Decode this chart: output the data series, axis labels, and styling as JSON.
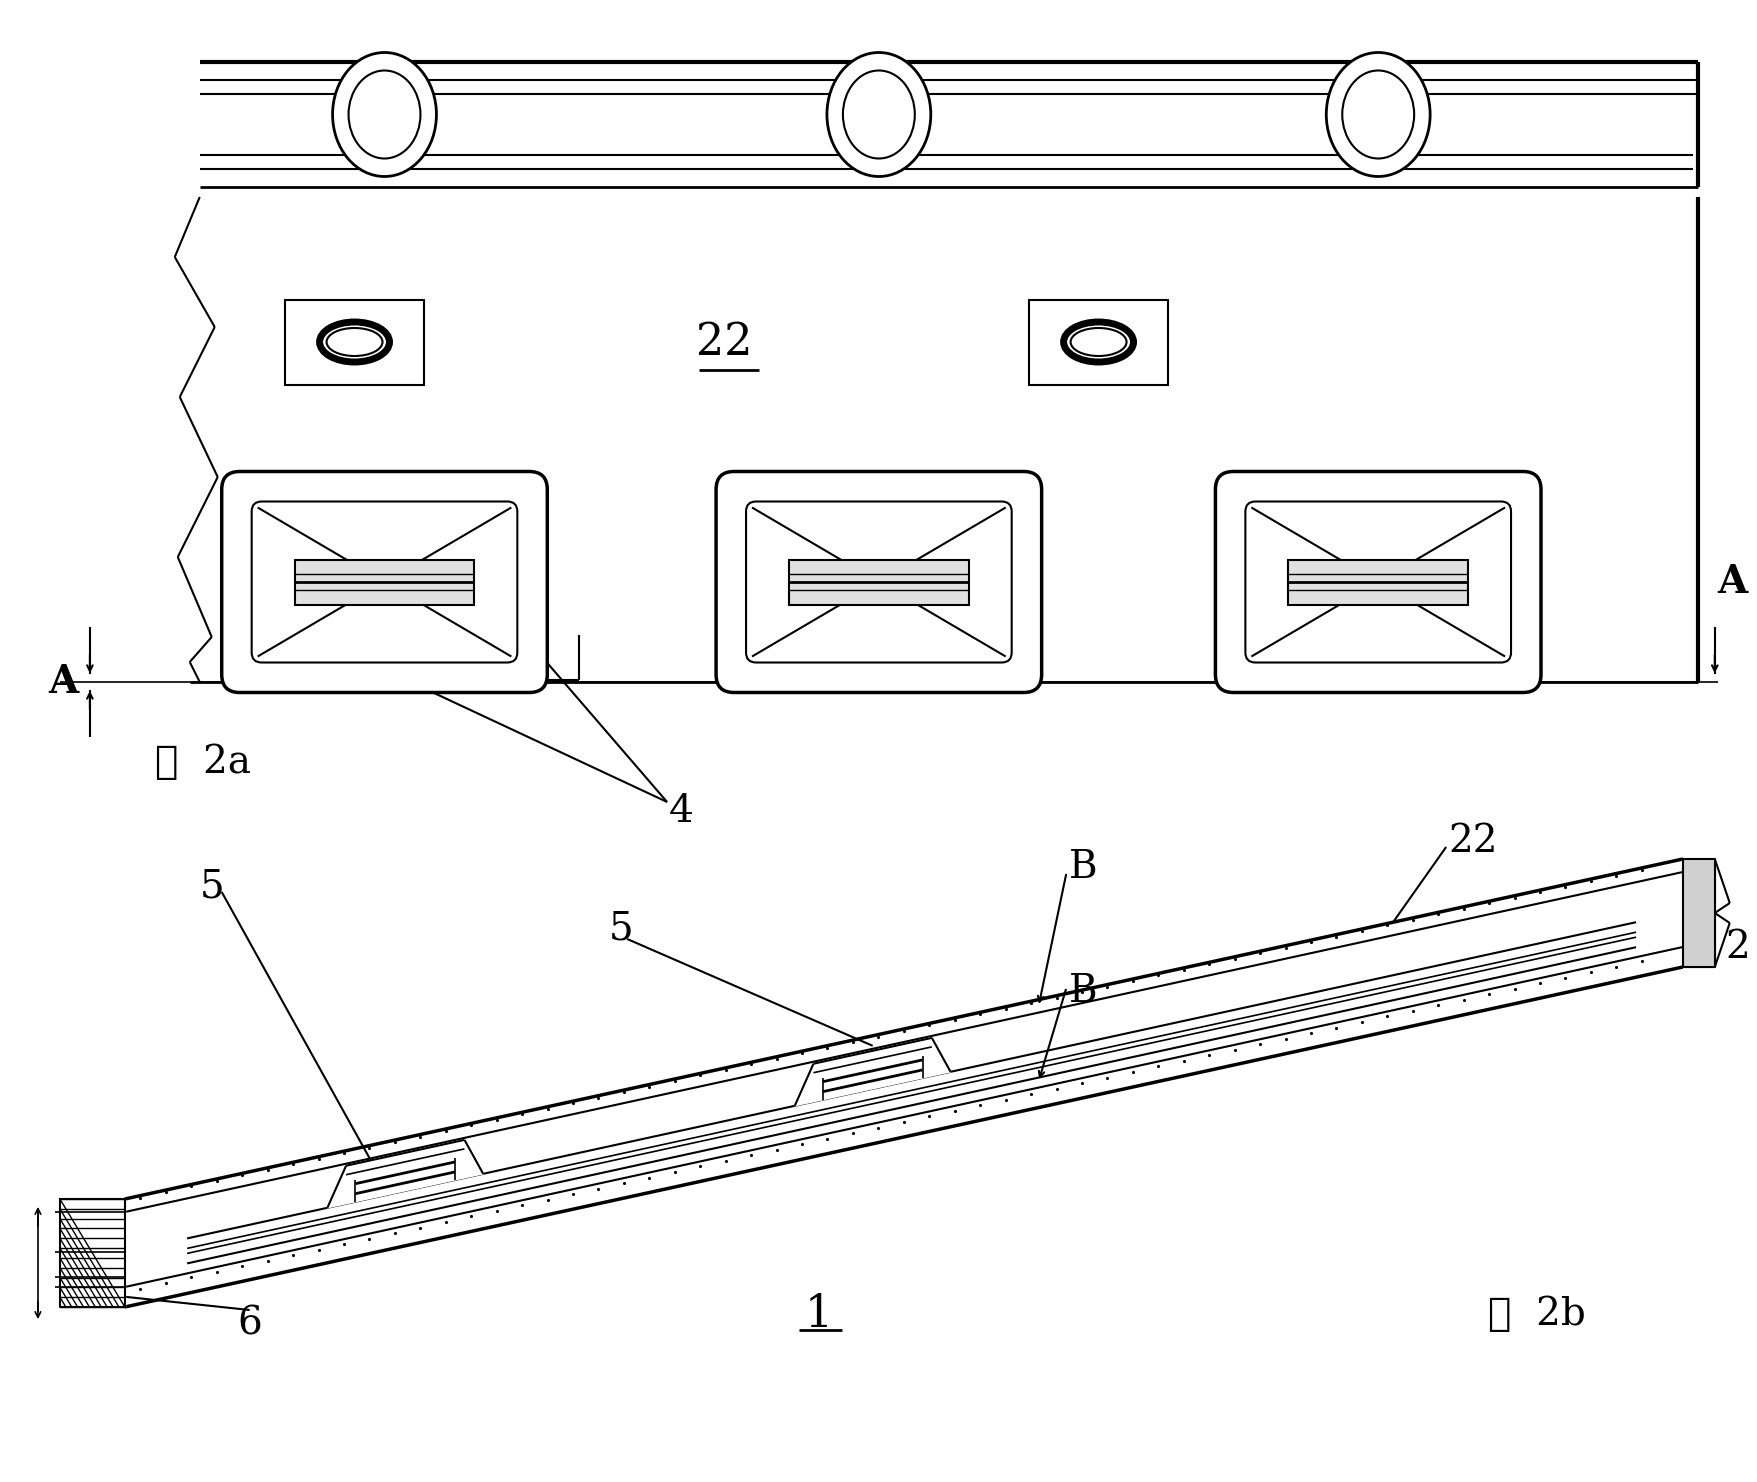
{
  "fig_width": 17.57,
  "fig_height": 14.82,
  "bg_color": "#ffffff",
  "lc": "#000000",
  "title_2a": "图  2a",
  "title_2b": "图  2b",
  "label_22_top": "22",
  "label_22_bottom": "22",
  "label_1": "1",
  "label_2": "2",
  "label_4": "4",
  "label_5a": "5",
  "label_5b": "5",
  "label_6": "6",
  "label_B1": "B",
  "label_B2": "B",
  "label_A": "A"
}
